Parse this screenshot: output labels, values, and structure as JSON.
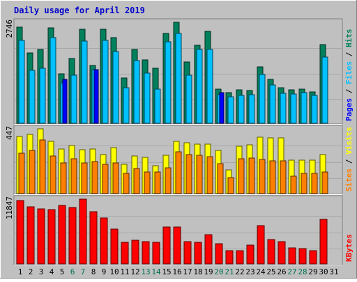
{
  "title": "Daily usage for April 2019",
  "colors": {
    "background": "#c0c0c0",
    "title": "#0000cc",
    "hits": "#00805c",
    "files": "#00c0ff",
    "pages": "#0000ff",
    "visits": "#ffff00",
    "sites": "#ff8000",
    "kbytes": "#ff0000",
    "weekend_day": "#007050",
    "weekday": "#000000"
  },
  "chart_data": [
    {
      "type": "bar",
      "panel": "hits-files-pages",
      "ymax_label": "2746",
      "ymax": 2746,
      "right_label": {
        "parts": [
          "Pages",
          "Files",
          "Hits"
        ],
        "sep": " / "
      },
      "categories": [
        "1",
        "2",
        "3",
        "4",
        "5",
        "6",
        "7",
        "8",
        "9",
        "10",
        "11",
        "12",
        "13",
        "14",
        "15",
        "16",
        "17",
        "18",
        "19",
        "20",
        "21",
        "22",
        "23",
        "24",
        "25",
        "26",
        "27",
        "28",
        "29",
        "30",
        "31"
      ],
      "series": [
        {
          "name": "Hits",
          "values": [
            2610,
            1910,
            2000,
            2600,
            1340,
            1770,
            2550,
            1570,
            2550,
            2330,
            1240,
            2010,
            1720,
            1490,
            2450,
            2746,
            1660,
            2130,
            2500,
            920,
            830,
            900,
            890,
            1540,
            1200,
            970,
            900,
            920,
            860,
            2140,
            0
          ]
        },
        {
          "name": "Files",
          "values": [
            2260,
            1440,
            1500,
            2320,
            1100,
            1300,
            2230,
            1460,
            2260,
            1960,
            960,
            1700,
            1360,
            920,
            2210,
            2440,
            1310,
            2010,
            2000,
            780,
            720,
            760,
            770,
            1330,
            1040,
            820,
            800,
            830,
            760,
            1790,
            0
          ]
        },
        {
          "name": "Pages",
          "values": [
            0,
            0,
            0,
            0,
            1200,
            0,
            0,
            1450,
            0,
            0,
            0,
            0,
            0,
            0,
            0,
            0,
            0,
            0,
            0,
            830,
            0,
            0,
            0,
            0,
            0,
            0,
            0,
            0,
            0,
            0,
            0
          ]
        }
      ]
    },
    {
      "type": "bar",
      "panel": "visits-sites",
      "ymax_label": "447",
      "ymax": 447,
      "right_label": {
        "parts": [
          "Sites",
          "Visits"
        ],
        "sep": " / "
      },
      "categories": [
        "1",
        "2",
        "3",
        "4",
        "5",
        "6",
        "7",
        "8",
        "9",
        "10",
        "11",
        "12",
        "13",
        "14",
        "15",
        "16",
        "17",
        "18",
        "19",
        "20",
        "21",
        "22",
        "23",
        "24",
        "25",
        "26",
        "27",
        "28",
        "29",
        "30",
        "31"
      ],
      "series": [
        {
          "name": "Visits",
          "values": [
            395,
            408,
            447,
            362,
            310,
            330,
            305,
            310,
            270,
            315,
            200,
            260,
            250,
            190,
            265,
            360,
            350,
            340,
            340,
            300,
            165,
            328,
            335,
            388,
            385,
            385,
            230,
            230,
            230,
            268,
            0
          ]
        },
        {
          "name": "Sites",
          "values": [
            280,
            298,
            368,
            258,
            210,
            240,
            210,
            220,
            200,
            210,
            140,
            175,
            150,
            150,
            180,
            290,
            270,
            265,
            255,
            205,
            110,
            240,
            245,
            235,
            228,
            225,
            120,
            140,
            140,
            150,
            0
          ]
        }
      ]
    },
    {
      "type": "bar",
      "panel": "kbytes",
      "ymax_label": "11847",
      "ymax": 11847,
      "right_label": {
        "parts": [
          "KBytes"
        ],
        "sep": ""
      },
      "categories": [
        "1",
        "2",
        "3",
        "4",
        "5",
        "6",
        "7",
        "8",
        "9",
        "10",
        "11",
        "12",
        "13",
        "14",
        "15",
        "16",
        "17",
        "18",
        "19",
        "20",
        "21",
        "22",
        "23",
        "24",
        "25",
        "26",
        "27",
        "28",
        "29",
        "30",
        "31"
      ],
      "series": [
        {
          "name": "KBytes",
          "values": [
            11600,
            10500,
            10100,
            9900,
            10700,
            10300,
            11847,
            9600,
            8400,
            6400,
            3900,
            4300,
            4100,
            3900,
            6700,
            6700,
            4100,
            3900,
            5300,
            3700,
            2400,
            2400,
            3400,
            7000,
            4400,
            4100,
            2900,
            2800,
            2400,
            8100,
            0
          ]
        }
      ]
    }
  ],
  "day_labels": [
    {
      "text": "1",
      "weekend": false
    },
    {
      "text": "2",
      "weekend": false
    },
    {
      "text": "3",
      "weekend": false
    },
    {
      "text": "4",
      "weekend": false
    },
    {
      "text": "5",
      "weekend": false
    },
    {
      "text": "6",
      "weekend": true
    },
    {
      "text": "7",
      "weekend": true
    },
    {
      "text": "8",
      "weekend": false
    },
    {
      "text": "9",
      "weekend": false
    },
    {
      "text": "10",
      "weekend": false
    },
    {
      "text": "11",
      "weekend": false
    },
    {
      "text": "12",
      "weekend": false
    },
    {
      "text": "13",
      "weekend": true
    },
    {
      "text": "14",
      "weekend": true
    },
    {
      "text": "15",
      "weekend": false
    },
    {
      "text": "16",
      "weekend": false
    },
    {
      "text": "17",
      "weekend": false
    },
    {
      "text": "18",
      "weekend": false
    },
    {
      "text": "19",
      "weekend": false
    },
    {
      "text": "20",
      "weekend": true
    },
    {
      "text": "21",
      "weekend": true
    },
    {
      "text": "22",
      "weekend": false
    },
    {
      "text": "23",
      "weekend": false
    },
    {
      "text": "24",
      "weekend": false
    },
    {
      "text": "25",
      "weekend": false
    },
    {
      "text": "26",
      "weekend": false
    },
    {
      "text": "27",
      "weekend": true
    },
    {
      "text": "28",
      "weekend": true
    },
    {
      "text": "29",
      "weekend": false
    },
    {
      "text": "30",
      "weekend": false
    },
    {
      "text": "31",
      "weekend": false
    }
  ]
}
